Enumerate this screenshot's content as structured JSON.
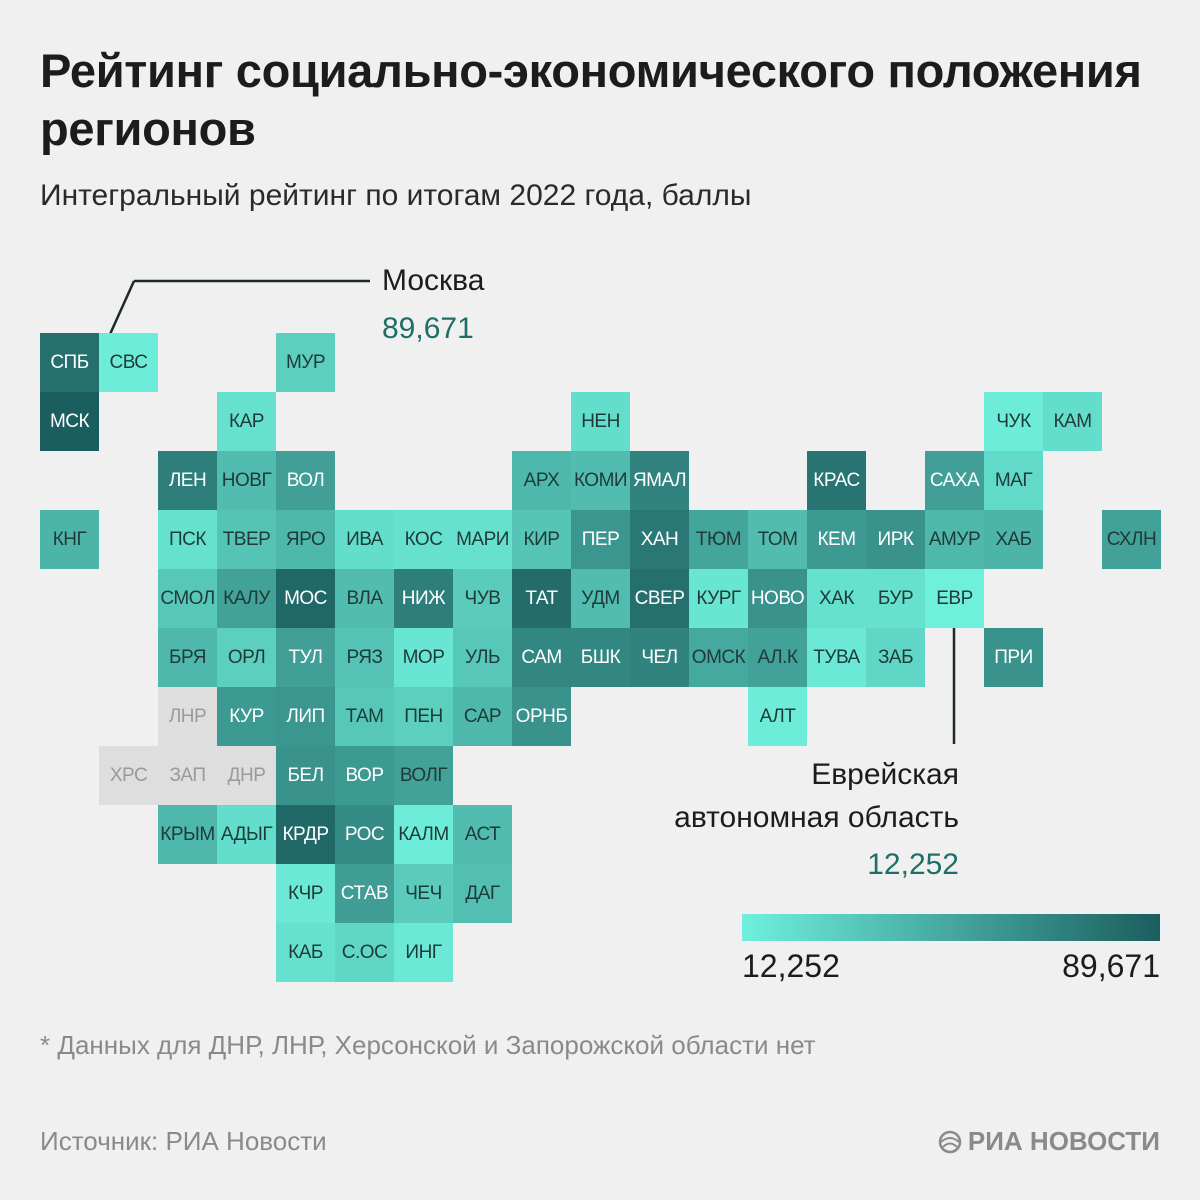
{
  "title": "Рейтинг социально-экономического положения регионов",
  "subtitle": "Интегральный рейтинг по итогам 2022 года, баллы",
  "chart_data": {
    "type": "heatmap",
    "title": "Рейтинг социально-экономического положения регионов",
    "subtitle": "Интегральный рейтинг по итогам 2022 года, баллы",
    "value_range": [
      12.252,
      89.671
    ],
    "color_scale": [
      "#6ff0dc",
      "#1b5e5f"
    ],
    "no_data_color": "#dedede",
    "regions": [
      {
        "code": "СПБ",
        "row": 0,
        "col": 0,
        "value": 80
      },
      {
        "code": "СВС",
        "row": 0,
        "col": 1,
        "value": 14
      },
      {
        "code": "МУР",
        "row": 0,
        "col": 4,
        "value": 30
      },
      {
        "code": "МСК",
        "row": 1,
        "col": 0,
        "value": 89.671
      },
      {
        "code": "КАР",
        "row": 1,
        "col": 3,
        "value": 20
      },
      {
        "code": "НЕН",
        "row": 1,
        "col": 9,
        "value": 22
      },
      {
        "code": "ЧУК",
        "row": 1,
        "col": 16,
        "value": 14
      },
      {
        "code": "КАМ",
        "row": 1,
        "col": 17,
        "value": 22
      },
      {
        "code": "ЛЕН",
        "row": 2,
        "col": 2,
        "value": 72
      },
      {
        "code": "НОВГ",
        "row": 2,
        "col": 3,
        "value": 40
      },
      {
        "code": "ВОЛ",
        "row": 2,
        "col": 4,
        "value": 55
      },
      {
        "code": "АРХ",
        "row": 2,
        "col": 8,
        "value": 42
      },
      {
        "code": "КОМИ",
        "row": 2,
        "col": 9,
        "value": 40
      },
      {
        "code": "ЯМАЛ",
        "row": 2,
        "col": 10,
        "value": 70
      },
      {
        "code": "КРАС",
        "row": 2,
        "col": 13,
        "value": 78
      },
      {
        "code": "САХА",
        "row": 2,
        "col": 15,
        "value": 55
      },
      {
        "code": "МАГ",
        "row": 2,
        "col": 16,
        "value": 24
      },
      {
        "code": "КНГ",
        "row": 3,
        "col": 0,
        "value": 44
      },
      {
        "code": "ПСК",
        "row": 3,
        "col": 2,
        "value": 20
      },
      {
        "code": "ТВЕР",
        "row": 3,
        "col": 3,
        "value": 36
      },
      {
        "code": "ЯРО",
        "row": 3,
        "col": 4,
        "value": 42
      },
      {
        "code": "ИВА",
        "row": 3,
        "col": 5,
        "value": 22
      },
      {
        "code": "КОС",
        "row": 3,
        "col": 6,
        "value": 20
      },
      {
        "code": "МАРИ",
        "row": 3,
        "col": 7,
        "value": 20
      },
      {
        "code": "КИР",
        "row": 3,
        "col": 8,
        "value": 35
      },
      {
        "code": "ПЕР",
        "row": 3,
        "col": 9,
        "value": 60
      },
      {
        "code": "ХАН",
        "row": 3,
        "col": 10,
        "value": 76
      },
      {
        "code": "ТЮМ",
        "row": 3,
        "col": 11,
        "value": 52
      },
      {
        "code": "ТОМ",
        "row": 3,
        "col": 12,
        "value": 40
      },
      {
        "code": "КЕМ",
        "row": 3,
        "col": 13,
        "value": 58
      },
      {
        "code": "ИРК",
        "row": 3,
        "col": 14,
        "value": 62
      },
      {
        "code": "АМУР",
        "row": 3,
        "col": 15,
        "value": 42
      },
      {
        "code": "ХАБ",
        "row": 3,
        "col": 16,
        "value": 44
      },
      {
        "code": "СХЛН",
        "row": 3,
        "col": 18,
        "value": 54
      },
      {
        "code": "СМОЛ",
        "row": 4,
        "col": 2,
        "value": 34
      },
      {
        "code": "КАЛУ",
        "row": 4,
        "col": 3,
        "value": 54
      },
      {
        "code": "МОС",
        "row": 4,
        "col": 4,
        "value": 85
      },
      {
        "code": "ВЛА",
        "row": 4,
        "col": 5,
        "value": 40
      },
      {
        "code": "НИЖ",
        "row": 4,
        "col": 6,
        "value": 72
      },
      {
        "code": "ЧУВ",
        "row": 4,
        "col": 7,
        "value": 32
      },
      {
        "code": "ТАТ",
        "row": 4,
        "col": 8,
        "value": 82
      },
      {
        "code": "УДМ",
        "row": 4,
        "col": 9,
        "value": 40
      },
      {
        "code": "СВЕР",
        "row": 4,
        "col": 10,
        "value": 80
      },
      {
        "code": "КУРГ",
        "row": 4,
        "col": 11,
        "value": 18
      },
      {
        "code": "НОВО",
        "row": 4,
        "col": 12,
        "value": 62
      },
      {
        "code": "ХАК",
        "row": 4,
        "col": 13,
        "value": 20
      },
      {
        "code": "БУР",
        "row": 4,
        "col": 14,
        "value": 20
      },
      {
        "code": "ЕВР",
        "row": 4,
        "col": 15,
        "value": 12.252
      },
      {
        "code": "БРЯ",
        "row": 5,
        "col": 2,
        "value": 42
      },
      {
        "code": "ОРЛ",
        "row": 5,
        "col": 3,
        "value": 30
      },
      {
        "code": "ТУЛ",
        "row": 5,
        "col": 4,
        "value": 55
      },
      {
        "code": "РЯЗ",
        "row": 5,
        "col": 5,
        "value": 36
      },
      {
        "code": "МОР",
        "row": 5,
        "col": 6,
        "value": 18
      },
      {
        "code": "УЛЬ",
        "row": 5,
        "col": 7,
        "value": 34
      },
      {
        "code": "САМ",
        "row": 5,
        "col": 8,
        "value": 68
      },
      {
        "code": "БШК",
        "row": 5,
        "col": 9,
        "value": 68
      },
      {
        "code": "ЧЕЛ",
        "row": 5,
        "col": 10,
        "value": 70
      },
      {
        "code": "ОМСК",
        "row": 5,
        "col": 11,
        "value": 50
      },
      {
        "code": "АЛ.К",
        "row": 5,
        "col": 12,
        "value": 54
      },
      {
        "code": "ТУВА",
        "row": 5,
        "col": 13,
        "value": 16
      },
      {
        "code": "ЗАБ",
        "row": 5,
        "col": 14,
        "value": 26
      },
      {
        "code": "ПРИ",
        "row": 5,
        "col": 16,
        "value": 62
      },
      {
        "code": "ЛНР",
        "row": 6,
        "col": 2,
        "value": null
      },
      {
        "code": "КУР",
        "row": 6,
        "col": 3,
        "value": 58
      },
      {
        "code": "ЛИП",
        "row": 6,
        "col": 4,
        "value": 60
      },
      {
        "code": "ТАМ",
        "row": 6,
        "col": 5,
        "value": 34
      },
      {
        "code": "ПЕН",
        "row": 6,
        "col": 6,
        "value": 30
      },
      {
        "code": "САР",
        "row": 6,
        "col": 7,
        "value": 42
      },
      {
        "code": "ОРНБ",
        "row": 6,
        "col": 8,
        "value": 62
      },
      {
        "code": "АЛТ",
        "row": 6,
        "col": 12,
        "value": 14
      },
      {
        "code": "ХРС",
        "row": 7,
        "col": 1,
        "value": null
      },
      {
        "code": "ЗАП",
        "row": 7,
        "col": 2,
        "value": null
      },
      {
        "code": "ДНР",
        "row": 7,
        "col": 3,
        "value": null
      },
      {
        "code": "БЕЛ",
        "row": 7,
        "col": 4,
        "value": 62
      },
      {
        "code": "ВОР",
        "row": 7,
        "col": 5,
        "value": 58
      },
      {
        "code": "ВОЛГ",
        "row": 7,
        "col": 6,
        "value": 54
      },
      {
        "code": "КРЫМ",
        "row": 8,
        "col": 2,
        "value": 42
      },
      {
        "code": "АДЫГ",
        "row": 8,
        "col": 3,
        "value": 22
      },
      {
        "code": "КРДР",
        "row": 8,
        "col": 4,
        "value": 84
      },
      {
        "code": "РОС",
        "row": 8,
        "col": 5,
        "value": 66
      },
      {
        "code": "КАЛМ",
        "row": 8,
        "col": 6,
        "value": 14
      },
      {
        "code": "АСТ",
        "row": 8,
        "col": 7,
        "value": 40
      },
      {
        "code": "КЧР",
        "row": 9,
        "col": 4,
        "value": 16
      },
      {
        "code": "СТАВ",
        "row": 9,
        "col": 5,
        "value": 56
      },
      {
        "code": "ЧЕЧ",
        "row": 9,
        "col": 6,
        "value": 32
      },
      {
        "code": "ДАГ",
        "row": 9,
        "col": 7,
        "value": 38
      },
      {
        "code": "КАБ",
        "row": 10,
        "col": 4,
        "value": 20
      },
      {
        "code": "С.ОС",
        "row": 10,
        "col": 5,
        "value": 26
      },
      {
        "code": "ИНГ",
        "row": 10,
        "col": 6,
        "value": 16
      }
    ],
    "annotations": [
      {
        "region": "МСК",
        "label": "Москва",
        "value": "89,671"
      },
      {
        "region": "ЕВР",
        "label_lines": [
          "Еврейская",
          "автономная область"
        ],
        "value": "12,252"
      }
    ],
    "legend": {
      "min_label": "12,252",
      "max_label": "89,671"
    }
  },
  "footnote": "* Данных для ДНР, ЛНР, Херсонской и Запорожской области нет",
  "source": "Источник: РИА Новости",
  "logo": "РИА НОВОСТИ",
  "colors": {
    "low": "#6ff0dc",
    "high": "#1b5e5f",
    "no_data": "#dedede",
    "accent_text": "#1e6f6a"
  }
}
